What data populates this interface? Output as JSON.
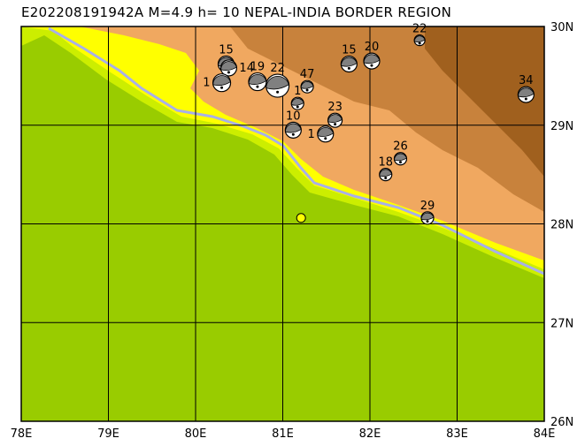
{
  "title": "E202208191942A M=4.9 h= 10 NEPAL-INDIA BORDER REGION",
  "map": {
    "lon_range": [
      78,
      84
    ],
    "lat_range": [
      26,
      30
    ],
    "lon_labels": [
      "78E",
      "79E",
      "80E",
      "81E",
      "82E",
      "83E",
      "84E"
    ],
    "lat_labels": [
      "30N",
      "29N",
      "28N",
      "27N",
      "26N"
    ],
    "colors": {
      "lowland": "#99cc00",
      "plain_edge": "#ccee00",
      "foothill": "#ffff00",
      "hill": "#f0a860",
      "mountain": "#c8823c",
      "high": "#a0601e",
      "river": "#a8b0e8",
      "epicenter": "#ffff00"
    },
    "epicenter": {
      "lon": 81.21,
      "lat": 28.06
    },
    "mechanisms": [
      {
        "label": "15",
        "lon": 80.35,
        "lat": 29.62,
        "r": 9
      },
      {
        "label": "14",
        "lon": 80.38,
        "lat": 29.58,
        "r": 9
      },
      {
        "label": "1",
        "lon": 80.3,
        "lat": 29.43,
        "r": 10
      },
      {
        "label": "19",
        "lon": 80.71,
        "lat": 29.44,
        "r": 10
      },
      {
        "label": "22",
        "lon": 80.94,
        "lat": 29.4,
        "r": 13
      },
      {
        "label": "47",
        "lon": 81.28,
        "lat": 29.39,
        "r": 7
      },
      {
        "label": "1",
        "lon": 81.17,
        "lat": 29.22,
        "r": 7
      },
      {
        "label": "10",
        "lon": 81.12,
        "lat": 28.95,
        "r": 9
      },
      {
        "label": "23",
        "lon": 81.6,
        "lat": 29.05,
        "r": 8
      },
      {
        "label": "1",
        "lon": 81.49,
        "lat": 28.91,
        "r": 9
      },
      {
        "label": "15",
        "lon": 81.76,
        "lat": 29.62,
        "r": 9
      },
      {
        "label": "20",
        "lon": 82.02,
        "lat": 29.65,
        "r": 9
      },
      {
        "label": "22",
        "lon": 82.57,
        "lat": 29.86,
        "r": 6
      },
      {
        "label": "34",
        "lon": 83.79,
        "lat": 29.31,
        "r": 9
      },
      {
        "label": "26",
        "lon": 82.35,
        "lat": 28.66,
        "r": 7
      },
      {
        "label": "18",
        "lon": 82.18,
        "lat": 28.5,
        "r": 7
      },
      {
        "label": "29",
        "lon": 82.66,
        "lat": 28.06,
        "r": 7
      }
    ]
  }
}
